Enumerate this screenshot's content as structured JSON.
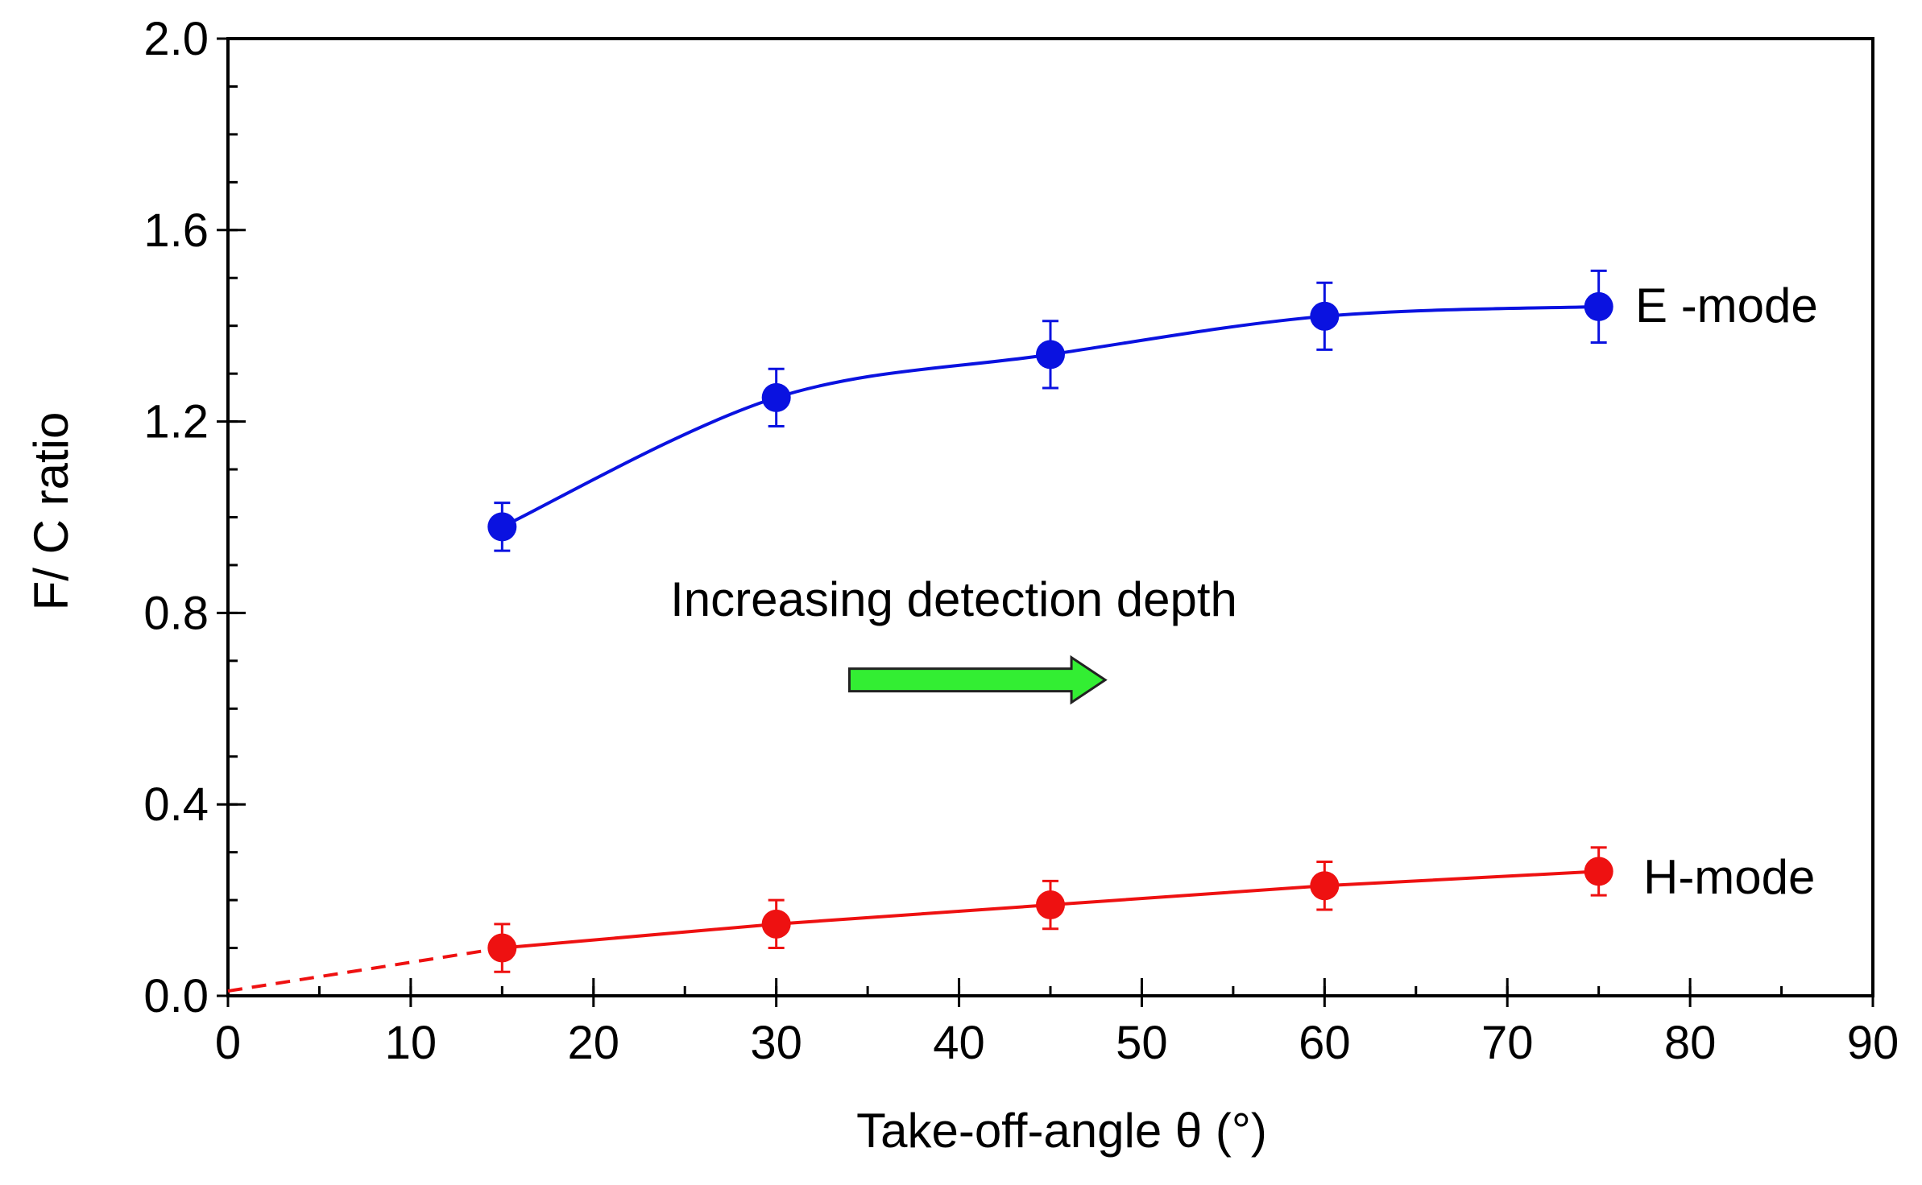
{
  "chart_data": {
    "type": "scatter",
    "title": "",
    "xlabel": "Take-off-angle θ (°)",
    "ylabel": "F/ C ratio",
    "xlim": [
      0,
      90
    ],
    "ylim": [
      0,
      2.0
    ],
    "x_ticks": [
      0,
      10,
      20,
      30,
      40,
      50,
      60,
      70,
      80,
      90
    ],
    "x_tick_labels": [
      "0",
      "10",
      "20",
      "30",
      "40",
      "50",
      "60",
      "70",
      "80",
      "90"
    ],
    "y_ticks": [
      0,
      0.4,
      0.8,
      1.2,
      1.6,
      2.0
    ],
    "y_tick_labels": [
      "0.0",
      "0.4",
      "0.8",
      "1.2",
      "1.6",
      "2.0"
    ],
    "y_minor_step": 0.1,
    "x_minor_step": 5,
    "grid": false,
    "series": [
      {
        "name": "E -mode",
        "color": "#0a12e0",
        "x": [
          15,
          30,
          45,
          60,
          75
        ],
        "y": [
          0.98,
          1.25,
          1.34,
          1.42,
          1.44
        ],
        "yerr": [
          0.05,
          0.06,
          0.07,
          0.07,
          0.075
        ],
        "fit": "smooth"
      },
      {
        "name": "H-mode",
        "color": "#ee1111",
        "x": [
          15,
          30,
          45,
          60,
          75
        ],
        "y": [
          0.1,
          0.15,
          0.19,
          0.23,
          0.26
        ],
        "yerr": [
          0.05,
          0.05,
          0.05,
          0.05,
          0.05
        ],
        "fit": "linear",
        "extrapolation": {
          "x": [
            0,
            15
          ],
          "y": [
            0.01,
            0.1
          ]
        }
      }
    ],
    "annotation": {
      "text": "Increasing detection depth",
      "arrow_color": "#33ee33",
      "arrow_x": [
        34,
        48
      ],
      "arrow_y": 0.66
    }
  }
}
